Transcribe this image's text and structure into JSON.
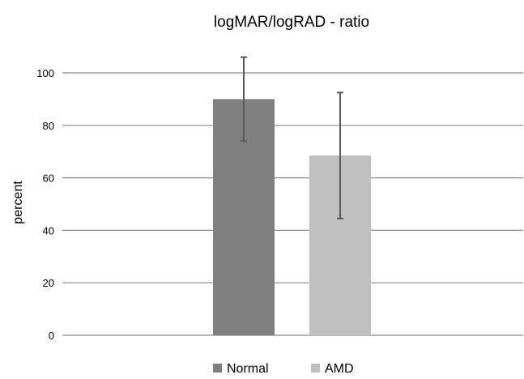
{
  "chart_data": {
    "type": "bar",
    "title": "logMAR/logRAD - ratio",
    "xlabel": "",
    "ylabel": "percent",
    "ylim": [
      0,
      110
    ],
    "yticks": [
      0,
      20,
      40,
      60,
      80,
      100
    ],
    "grid": true,
    "legend_position": "bottom",
    "categories": [
      "Normal",
      "AMD"
    ],
    "series": [
      {
        "name": "Normal",
        "value": 90,
        "error_low": 74,
        "error_high": 106,
        "color": "#7f7f7f"
      },
      {
        "name": "AMD",
        "value": 68.5,
        "error_low": 44.5,
        "error_high": 92.5,
        "color": "#bfbfbf"
      }
    ],
    "errorbar_color": "#595959",
    "gridline_color": "#8c8c8c",
    "text_color": "#000000"
  }
}
